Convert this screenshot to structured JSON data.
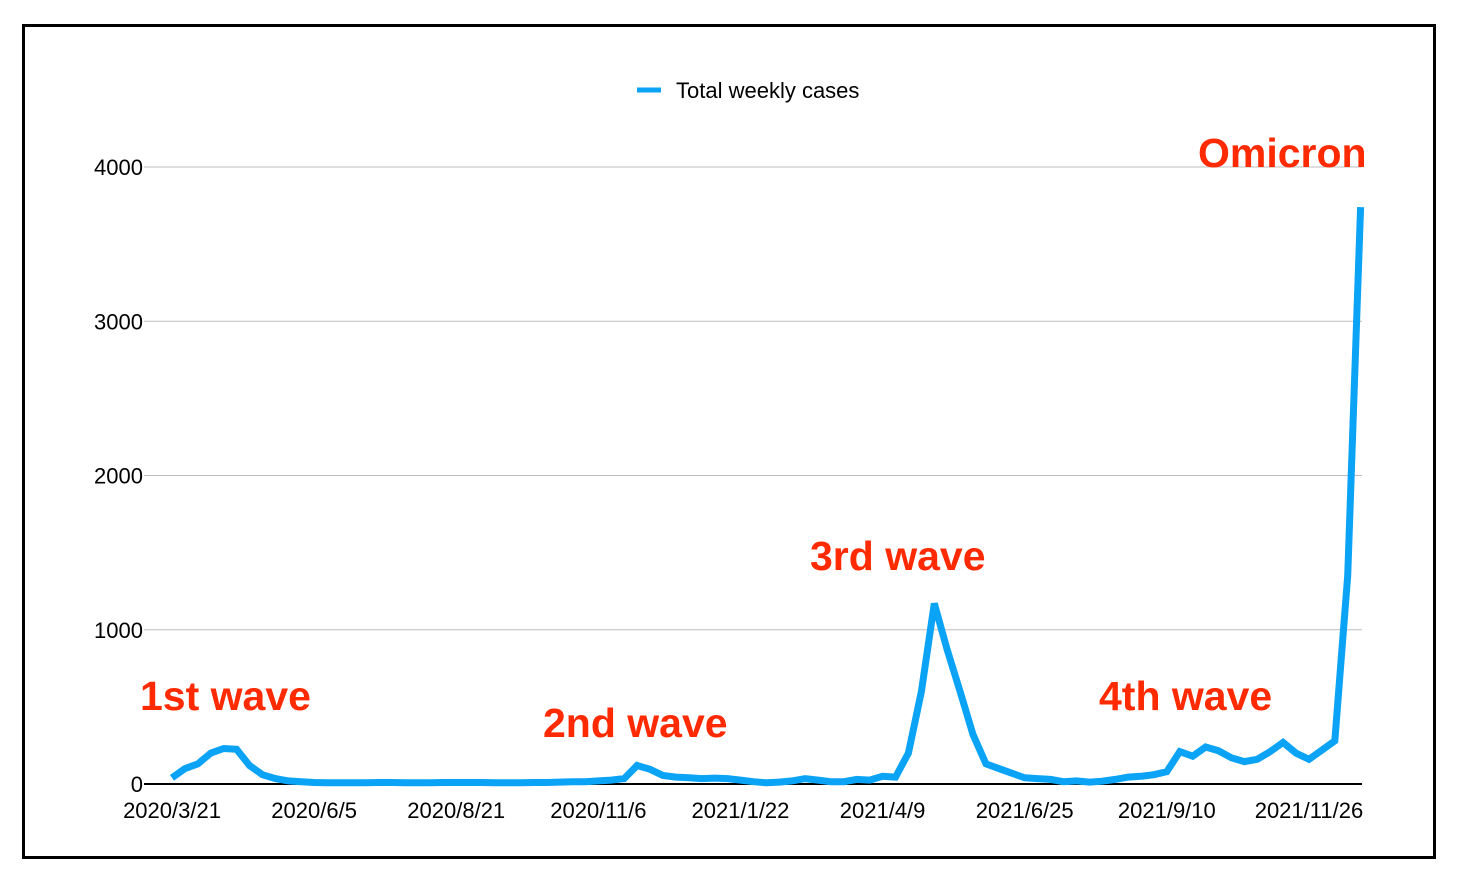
{
  "chart_data": {
    "type": "line",
    "title": "",
    "xlabel": "",
    "ylabel": "",
    "ylim": [
      0,
      4000
    ],
    "yticks": [
      0,
      1000,
      2000,
      3000,
      4000
    ],
    "grid": true,
    "legend": {
      "placement": "top-center",
      "entries": [
        "Total weekly cases"
      ]
    },
    "x_tick_labels": [
      "2020/3/21",
      "2020/6/5",
      "2020/8/21",
      "2020/11/6",
      "2021/1/22",
      "2021/4/9",
      "2021/6/25",
      "2021/9/10",
      "2021/11/26"
    ],
    "x_tick_week_index": [
      0,
      11,
      22,
      33,
      44,
      55,
      66,
      77,
      88
    ],
    "series": [
      {
        "name": "Total weekly cases",
        "color": "#0aa3f5",
        "values": [
          40,
          100,
          130,
          200,
          230,
          225,
          120,
          60,
          35,
          20,
          15,
          10,
          8,
          8,
          8,
          8,
          10,
          10,
          8,
          8,
          8,
          10,
          10,
          10,
          10,
          8,
          8,
          8,
          10,
          10,
          12,
          15,
          15,
          20,
          25,
          35,
          120,
          95,
          55,
          45,
          40,
          35,
          38,
          35,
          25,
          15,
          8,
          12,
          20,
          35,
          25,
          15,
          15,
          30,
          25,
          50,
          45,
          200,
          600,
          1170,
          870,
          600,
          320,
          130,
          100,
          70,
          40,
          35,
          30,
          15,
          20,
          12,
          18,
          30,
          45,
          50,
          60,
          80,
          210,
          180,
          240,
          215,
          170,
          145,
          160,
          210,
          270,
          200,
          160,
          220,
          280,
          1350,
          3740
        ]
      }
    ],
    "annotations": [
      {
        "text": "1st wave",
        "color": "#ff2a00"
      },
      {
        "text": "2nd wave",
        "color": "#ff2a00"
      },
      {
        "text": "3rd wave",
        "color": "#ff2a00"
      },
      {
        "text": "4th wave",
        "color": "#ff2a00"
      },
      {
        "text": "Omicron",
        "color": "#ff2a00"
      }
    ]
  }
}
